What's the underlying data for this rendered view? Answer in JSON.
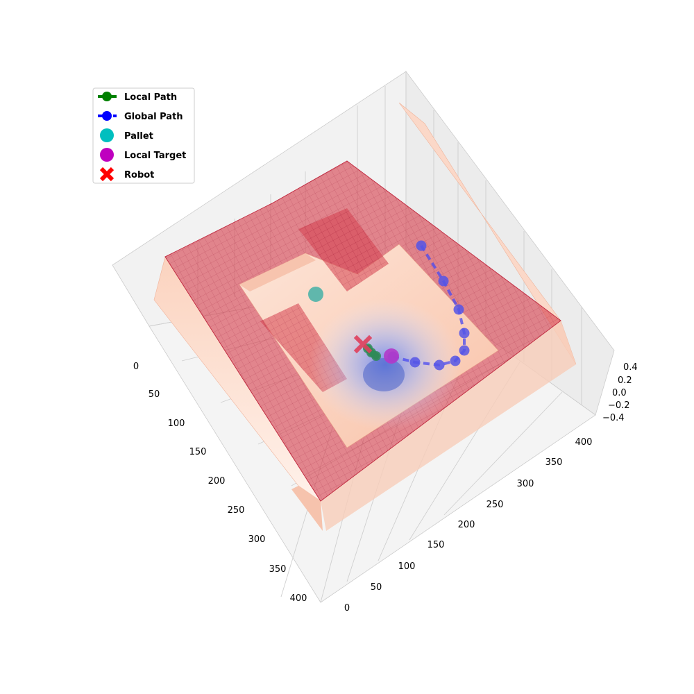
{
  "chart_data": {
    "type": "surface3d",
    "title": "",
    "grid": true,
    "legend_position": "top-left",
    "axes": {
      "x": {
        "label": "",
        "range": [
          0,
          420
        ],
        "ticks": [
          "0",
          "50",
          "100",
          "150",
          "200",
          "250",
          "300",
          "350",
          "400"
        ]
      },
      "y": {
        "label": "",
        "range": [
          0,
          420
        ],
        "ticks": [
          "0",
          "50",
          "100",
          "150",
          "200",
          "250",
          "300",
          "350",
          "400"
        ]
      },
      "z": {
        "label": "",
        "range": [
          -0.4,
          0.4
        ],
        "ticks": [
          "0.4",
          "0.2",
          "0.0",
          "−0.2",
          "−0.4"
        ]
      }
    },
    "legend": [
      {
        "label": "Local Path",
        "marker": "line-dot",
        "color": "#008000"
      },
      {
        "label": "Global Path",
        "marker": "line-dot",
        "color": "#0000ff"
      },
      {
        "label": "Pallet",
        "marker": "dot",
        "color": "#00bfbf"
      },
      {
        "label": "Local Target",
        "marker": "dot",
        "color": "#bf00bf"
      },
      {
        "label": "Robot",
        "marker": "x",
        "color": "#ff0000"
      }
    ],
    "surface": {
      "walls_color": "#d6404e",
      "potential_low_color": "#6f8ff5",
      "potential_high_color": "#fbd0bb"
    },
    "robot": {
      "x": 150,
      "y": 160
    },
    "pallet": {
      "x": 100,
      "y": 110
    },
    "local_target": {
      "x": 170,
      "y": 175
    },
    "local_path": [
      {
        "x": 150,
        "y": 160
      },
      {
        "x": 158,
        "y": 166
      },
      {
        "x": 165,
        "y": 170
      }
    ],
    "global_path": [
      {
        "x": 172,
        "y": 178
      },
      {
        "x": 185,
        "y": 195
      },
      {
        "x": 200,
        "y": 210
      },
      {
        "x": 215,
        "y": 222
      },
      {
        "x": 230,
        "y": 230
      },
      {
        "x": 250,
        "y": 235
      },
      {
        "x": 275,
        "y": 228
      },
      {
        "x": 300,
        "y": 215
      },
      {
        "x": 325,
        "y": 200
      }
    ]
  }
}
